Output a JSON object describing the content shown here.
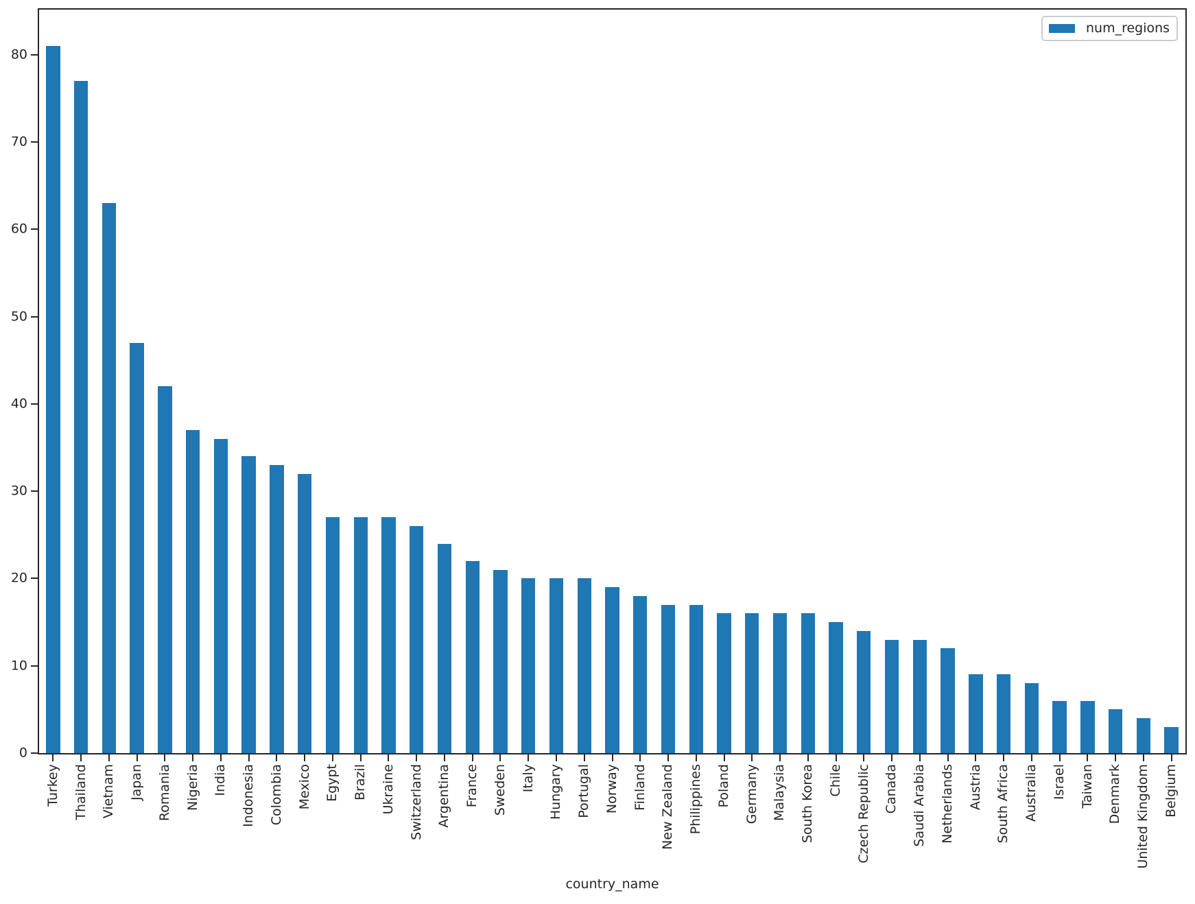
{
  "chart_data": {
    "type": "bar",
    "title": "",
    "xlabel": "country_name",
    "ylabel": "",
    "categories": [
      "Turkey",
      "Thailand",
      "Vietnam",
      "Japan",
      "Romania",
      "Nigeria",
      "India",
      "Indonesia",
      "Colombia",
      "Mexico",
      "Egypt",
      "Brazil",
      "Ukraine",
      "Switzerland",
      "Argentina",
      "France",
      "Sweden",
      "Italy",
      "Hungary",
      "Portugal",
      "Norway",
      "Finland",
      "New Zealand",
      "Philippines",
      "Poland",
      "Germany",
      "Malaysia",
      "South Korea",
      "Chile",
      "Czech Republic",
      "Canada",
      "Saudi Arabia",
      "Netherlands",
      "Austria",
      "South Africa",
      "Australia",
      "Israel",
      "Taiwan",
      "Denmark",
      "United Kingdom",
      "Belgium"
    ],
    "series": [
      {
        "name": "num_regions",
        "values": [
          81,
          77,
          63,
          47,
          42,
          37,
          36,
          34,
          33,
          32,
          27,
          27,
          27,
          26,
          24,
          22,
          21,
          20,
          20,
          20,
          19,
          18,
          17,
          17,
          16,
          16,
          16,
          16,
          15,
          14,
          13,
          13,
          12,
          9,
          9,
          8,
          6,
          6,
          5,
          4,
          3
        ]
      }
    ],
    "ylim": [
      0,
      85.17
    ],
    "yticks": [
      0,
      10,
      20,
      30,
      40,
      50,
      60,
      70,
      80
    ],
    "xtick_rotation_deg": 90,
    "grid": false,
    "legend_position": "upper right",
    "bar_color": "#1f77b4",
    "spine_color": "#262626",
    "text_color": "#262626"
  },
  "legend": {
    "label": "num_regions"
  }
}
